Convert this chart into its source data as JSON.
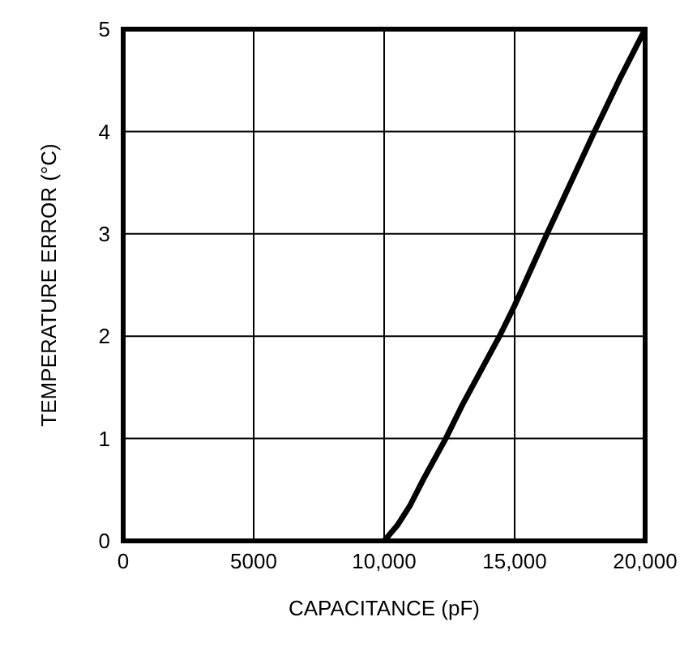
{
  "chart_data": {
    "type": "line",
    "xlabel": "CAPACITANCE (pF)",
    "ylabel": "TEMPERATURE ERROR (°C)",
    "x": [
      10000,
      10500,
      11000,
      11500,
      12360,
      13000,
      14420,
      15000,
      16240,
      18060,
      19000,
      20000
    ],
    "series": [
      {
        "color": "#000000",
        "values": [
          0,
          0.15,
          0.35,
          0.6,
          1,
          1.33,
          2,
          2.3,
          3,
          4,
          4.5,
          5
        ]
      }
    ],
    "xlim": [
      0,
      20000
    ],
    "xticks": [
      0,
      5000,
      {
        "value": 10000,
        "label": "10,000"
      },
      {
        "value": 15000,
        "label": "15,000"
      },
      {
        "value": 20000,
        "label": "20,000"
      }
    ],
    "ylim": [
      0,
      5
    ],
    "yticks": [
      0,
      1,
      2,
      3,
      4,
      5
    ],
    "grid": true,
    "legend": false,
    "marker": "none",
    "line_style": "solid"
  }
}
